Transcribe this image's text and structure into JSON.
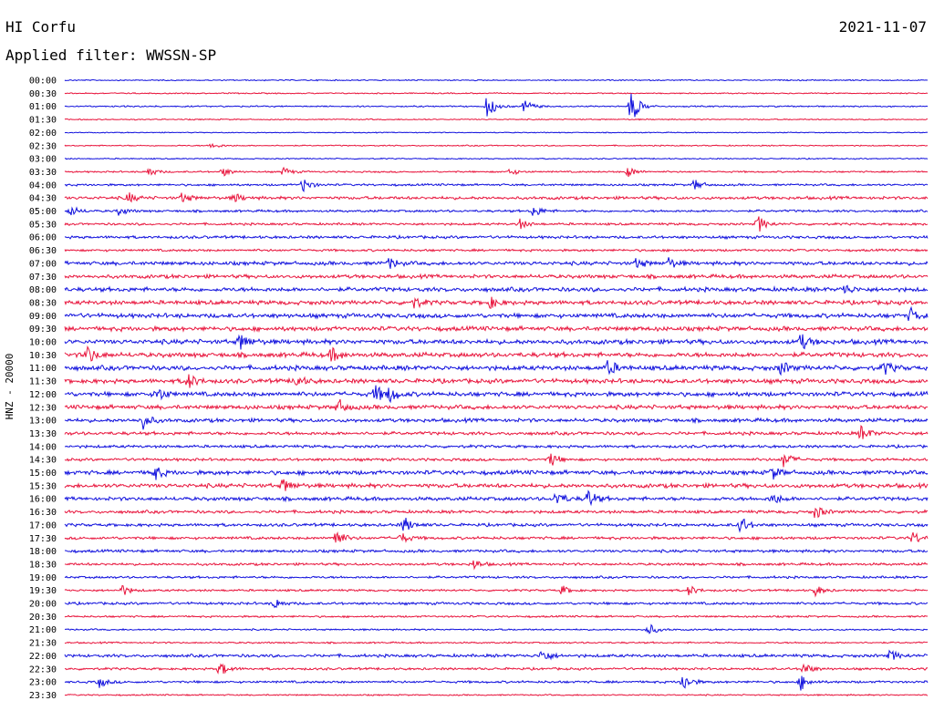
{
  "header": {
    "station": "HI Corfu",
    "date": "2021-11-07",
    "filter": "Applied filter: WWSSN-SP"
  },
  "colors": {
    "even_line": "#1010dd",
    "odd_line": "#e8143c",
    "text": "#000000"
  },
  "chart_data": {
    "type": "helicorder",
    "ylabel": "HNZ - 20000",
    "tick_labels": [
      "00:00",
      "00:30",
      "01:00",
      "01:30",
      "02:00",
      "02:30",
      "03:00",
      "03:30",
      "04:00",
      "04:30",
      "05:00",
      "05:30",
      "06:00",
      "06:30",
      "07:00",
      "07:30",
      "08:00",
      "08:30",
      "09:00",
      "09:30",
      "10:00",
      "10:30",
      "11:00",
      "11:30",
      "12:00",
      "12:30",
      "13:00",
      "13:30",
      "14:00",
      "14:30",
      "15:00",
      "15:30",
      "16:00",
      "16:30",
      "17:00",
      "17:30",
      "18:00",
      "18:30",
      "19:00",
      "19:30",
      "20:00",
      "20:30",
      "21:00",
      "21:30",
      "22:00",
      "22:30",
      "23:00",
      "23:30"
    ],
    "line_minutes": 30,
    "alternating_colors": [
      "blue",
      "red"
    ],
    "noise_levels": [
      0.5,
      0.5,
      0.6,
      0.5,
      0.4,
      0.5,
      0.5,
      0.7,
      0.9,
      1.3,
      1.0,
      1.0,
      1.2,
      1.0,
      1.6,
      1.6,
      1.8,
      1.8,
      1.9,
      1.9,
      2.0,
      2.0,
      2.0,
      1.9,
      1.9,
      1.8,
      1.6,
      1.4,
      1.2,
      1.2,
      1.8,
      1.8,
      1.6,
      1.3,
      1.3,
      1.2,
      1.2,
      1.1,
      1.0,
      0.9,
      1.1,
      0.8,
      0.7,
      0.7,
      1.3,
      1.0,
      1.0,
      0.6
    ],
    "events": [
      {
        "line": "01:00",
        "minute": 14.7,
        "amplitude": 14
      },
      {
        "line": "01:00",
        "minute": 16.0,
        "amplitude": 8
      },
      {
        "line": "01:00",
        "minute": 19.7,
        "amplitude": 20
      },
      {
        "line": "02:30",
        "minute": 5.1,
        "amplitude": 4
      },
      {
        "line": "03:30",
        "minute": 2.9,
        "amplitude": 6
      },
      {
        "line": "03:30",
        "minute": 5.5,
        "amplitude": 5
      },
      {
        "line": "03:30",
        "minute": 7.6,
        "amplitude": 5
      },
      {
        "line": "03:30",
        "minute": 15.5,
        "amplitude": 4
      },
      {
        "line": "03:30",
        "minute": 19.6,
        "amplitude": 6
      },
      {
        "line": "04:00",
        "minute": 8.3,
        "amplitude": 8
      },
      {
        "line": "04:00",
        "minute": 21.9,
        "amplitude": 6
      },
      {
        "line": "04:30",
        "minute": 2.2,
        "amplitude": 6
      },
      {
        "line": "04:30",
        "minute": 4.1,
        "amplitude": 6
      },
      {
        "line": "04:30",
        "minute": 5.9,
        "amplitude": 5
      },
      {
        "line": "05:00",
        "minute": 0.2,
        "amplitude": 6
      },
      {
        "line": "05:00",
        "minute": 1.9,
        "amplitude": 5
      },
      {
        "line": "05:00",
        "minute": 16.3,
        "amplitude": 7
      },
      {
        "line": "05:30",
        "minute": 15.8,
        "amplitude": 6
      },
      {
        "line": "05:30",
        "minute": 24.1,
        "amplitude": 10
      },
      {
        "line": "07:00",
        "minute": 11.3,
        "amplitude": 6
      },
      {
        "line": "07:00",
        "minute": 19.9,
        "amplitude": 6
      },
      {
        "line": "07:00",
        "minute": 21.0,
        "amplitude": 6
      },
      {
        "line": "08:00",
        "minute": 27.1,
        "amplitude": 6
      },
      {
        "line": "08:30",
        "minute": 12.1,
        "amplitude": 7
      },
      {
        "line": "08:30",
        "minute": 14.8,
        "amplitude": 6
      },
      {
        "line": "09:00",
        "minute": 29.4,
        "amplitude": 8
      },
      {
        "line": "10:00",
        "minute": 6.1,
        "amplitude": 10
      },
      {
        "line": "10:00",
        "minute": 25.6,
        "amplitude": 9
      },
      {
        "line": "10:30",
        "minute": 0.8,
        "amplitude": 10
      },
      {
        "line": "10:30",
        "minute": 9.3,
        "amplitude": 8
      },
      {
        "line": "11:00",
        "minute": 18.9,
        "amplitude": 9
      },
      {
        "line": "11:00",
        "minute": 24.9,
        "amplitude": 8
      },
      {
        "line": "11:00",
        "minute": 28.5,
        "amplitude": 7
      },
      {
        "line": "11:30",
        "minute": 4.3,
        "amplitude": 9
      },
      {
        "line": "11:30",
        "minute": 8.0,
        "amplitude": 8
      },
      {
        "line": "12:00",
        "minute": 3.2,
        "amplitude": 9
      },
      {
        "line": "12:00",
        "minute": 10.8,
        "amplitude": 10
      },
      {
        "line": "12:00",
        "minute": 11.3,
        "amplitude": 8
      },
      {
        "line": "12:30",
        "minute": 9.5,
        "amplitude": 9
      },
      {
        "line": "13:00",
        "minute": 2.7,
        "amplitude": 10
      },
      {
        "line": "13:30",
        "minute": 27.7,
        "amplitude": 9
      },
      {
        "line": "14:30",
        "minute": 16.9,
        "amplitude": 8
      },
      {
        "line": "14:30",
        "minute": 25.0,
        "amplitude": 9
      },
      {
        "line": "15:00",
        "minute": 3.1,
        "amplitude": 9
      },
      {
        "line": "15:00",
        "minute": 24.6,
        "amplitude": 7
      },
      {
        "line": "15:30",
        "minute": 7.6,
        "amplitude": 8
      },
      {
        "line": "16:00",
        "minute": 17.1,
        "amplitude": 9
      },
      {
        "line": "16:00",
        "minute": 18.2,
        "amplitude": 10
      },
      {
        "line": "16:00",
        "minute": 24.6,
        "amplitude": 7
      },
      {
        "line": "16:30",
        "minute": 26.1,
        "amplitude": 8
      },
      {
        "line": "17:00",
        "minute": 11.8,
        "amplitude": 9
      },
      {
        "line": "17:00",
        "minute": 23.5,
        "amplitude": 10
      },
      {
        "line": "17:30",
        "minute": 9.4,
        "amplitude": 12
      },
      {
        "line": "17:30",
        "minute": 11.7,
        "amplitude": 6
      },
      {
        "line": "17:30",
        "minute": 29.5,
        "amplitude": 7
      },
      {
        "line": "18:30",
        "minute": 14.2,
        "amplitude": 6
      },
      {
        "line": "19:30",
        "minute": 2.0,
        "amplitude": 6
      },
      {
        "line": "19:30",
        "minute": 17.3,
        "amplitude": 5
      },
      {
        "line": "19:30",
        "minute": 21.7,
        "amplitude": 6
      },
      {
        "line": "19:30",
        "minute": 26.1,
        "amplitude": 6
      },
      {
        "line": "20:00",
        "minute": 7.3,
        "amplitude": 6
      },
      {
        "line": "21:00",
        "minute": 20.3,
        "amplitude": 7
      },
      {
        "line": "22:00",
        "minute": 16.6,
        "amplitude": 8
      },
      {
        "line": "22:00",
        "minute": 28.7,
        "amplitude": 6
      },
      {
        "line": "22:30",
        "minute": 5.4,
        "amplitude": 8
      },
      {
        "line": "22:30",
        "minute": 25.7,
        "amplitude": 7
      },
      {
        "line": "23:00",
        "minute": 1.2,
        "amplitude": 6
      },
      {
        "line": "23:00",
        "minute": 21.5,
        "amplitude": 10
      },
      {
        "line": "23:00",
        "minute": 25.6,
        "amplitude": 9
      }
    ]
  }
}
